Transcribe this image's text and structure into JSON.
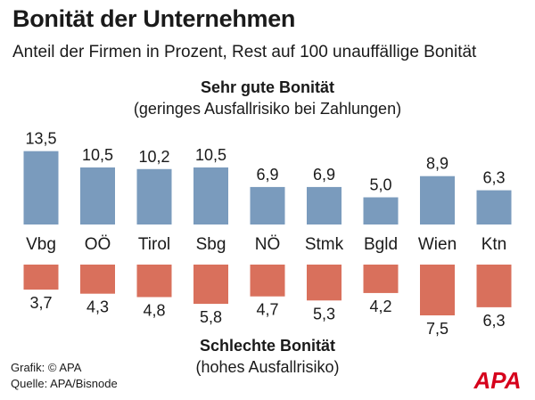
{
  "title": "Bonität der Unternehmen",
  "subtitle": "Anteil der Firmen in Prozent, Rest auf 100 unauffällige Bonität",
  "top_section": {
    "heading": "Sehr gute Bonität",
    "subheading": "(geringes Ausfallrisiko bei Zahlungen)"
  },
  "bottom_section": {
    "heading": "Schlechte Bonität",
    "subheading": "(hohes Ausfallrisiko)"
  },
  "footer": {
    "credit": "Grafik: © APA",
    "source": "Quelle: APA/Bisnode"
  },
  "logo_text": "APA",
  "colors": {
    "good": "#7a9bbd",
    "bad": "#d9705c",
    "logo_red": "#d6001c"
  },
  "chart_data": {
    "type": "bar",
    "categories": [
      "Vbg",
      "OÖ",
      "Tirol",
      "Sbg",
      "NÖ",
      "Stmk",
      "Bgld",
      "Wien",
      "Ktn"
    ],
    "series": [
      {
        "name": "Sehr gute Bonität",
        "values": [
          13.5,
          10.5,
          10.2,
          10.5,
          6.9,
          6.9,
          5.0,
          8.9,
          6.3
        ],
        "labels": [
          "13,5",
          "10,5",
          "10,2",
          "10,5",
          "6,9",
          "6,9",
          "5,0",
          "8,9",
          "6,3"
        ]
      },
      {
        "name": "Schlechte Bonität",
        "values": [
          3.7,
          4.3,
          4.8,
          5.8,
          4.7,
          5.3,
          4.2,
          7.5,
          6.3
        ],
        "labels": [
          "3,7",
          "4,3",
          "4,8",
          "5,8",
          "4,7",
          "5,3",
          "4,2",
          "7,5",
          "6,3"
        ]
      }
    ]
  }
}
